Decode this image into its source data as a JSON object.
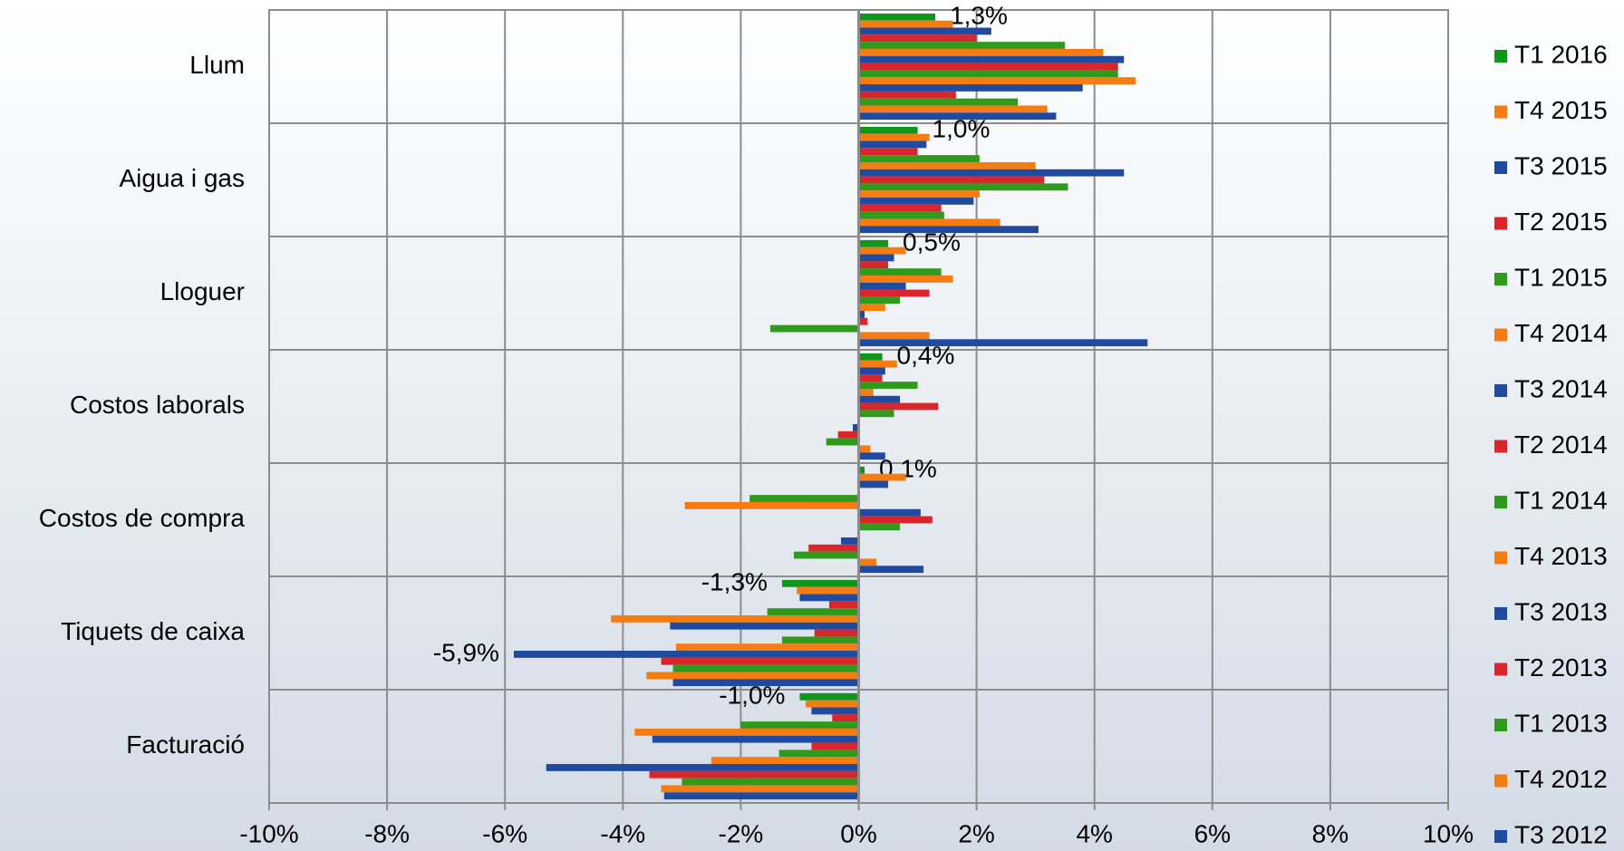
{
  "chart_data": {
    "type": "bar",
    "orientation": "horizontal",
    "categories": [
      "Llum",
      "Aigua i gas",
      "Lloguer",
      "Costos laborals",
      "Costos de compra",
      "Tiquets de caixa",
      "Facturació"
    ],
    "series": [
      {
        "name": "T1 2016",
        "color": "#109618",
        "values": [
          1.3,
          1.0,
          0.5,
          0.4,
          0.1,
          -1.3,
          -1.0
        ],
        "value_labels": [
          "1,3%",
          "1,0%",
          "0,5%",
          "0,4%",
          "0,1%",
          "-1,3%",
          "-1,0%"
        ]
      },
      {
        "name": "T4 2015",
        "color": "#f47c12",
        "values": [
          1.6,
          1.2,
          0.8,
          0.65,
          0.8,
          -1.05,
          -0.9
        ]
      },
      {
        "name": "T3 2015",
        "color": "#1f4aa0",
        "values": [
          2.25,
          1.15,
          0.6,
          0.45,
          0.5,
          -1.0,
          -0.8
        ]
      },
      {
        "name": "T2 2015",
        "color": "#d9262c",
        "values": [
          2.0,
          1.0,
          0.5,
          0.4,
          0,
          -0.5,
          -0.45
        ]
      },
      {
        "name": "T1 2015",
        "color": "#2f9a1c",
        "values": [
          3.5,
          2.05,
          1.4,
          1.0,
          -1.85,
          -1.55,
          -2.0
        ]
      },
      {
        "name": "T4 2014",
        "color": "#f47c12",
        "values": [
          4.15,
          3.0,
          1.6,
          0.25,
          -2.95,
          -4.2,
          -3.8
        ]
      },
      {
        "name": "T3 2014",
        "color": "#1f4aa0",
        "values": [
          4.5,
          4.5,
          0.8,
          0.7,
          1.05,
          -3.2,
          -3.5
        ]
      },
      {
        "name": "T2 2014",
        "color": "#d9262c",
        "values": [
          4.4,
          3.15,
          1.2,
          1.35,
          1.25,
          -0.75,
          -0.8
        ]
      },
      {
        "name": "T1 2014",
        "color": "#2f9a1c",
        "values": [
          4.4,
          3.55,
          0.7,
          0.6,
          0.7,
          -1.3,
          -1.35
        ]
      },
      {
        "name": "T4 2013",
        "color": "#f47c12",
        "values": [
          4.7,
          2.05,
          0.45,
          0,
          0,
          -3.1,
          -2.5
        ]
      },
      {
        "name": "T3 2013",
        "color": "#1f4aa0",
        "values": [
          3.8,
          1.95,
          0.1,
          -0.1,
          -0.3,
          -5.85,
          -5.3
        ],
        "value_labels": [
          null,
          null,
          null,
          null,
          null,
          "-5,9%",
          null
        ]
      },
      {
        "name": "T2 2013",
        "color": "#d9262c",
        "values": [
          1.65,
          1.4,
          0.15,
          -0.35,
          -0.85,
          -3.35,
          -3.55
        ]
      },
      {
        "name": "T1 2013",
        "color": "#2f9a1c",
        "values": [
          2.7,
          1.45,
          -1.5,
          -0.55,
          -1.1,
          -3.15,
          -3.0
        ]
      },
      {
        "name": "T4 2012",
        "color": "#f47c12",
        "values": [
          3.2,
          2.4,
          1.2,
          0.2,
          0.3,
          -3.6,
          -3.35
        ]
      },
      {
        "name": "T3 2012",
        "color": "#1f4aa0",
        "values": [
          3.35,
          3.05,
          4.9,
          0.45,
          1.1,
          -3.15,
          -3.3
        ]
      }
    ],
    "xlim": [
      -10,
      10
    ],
    "xticks": [
      {
        "value": -10,
        "label": "-10%"
      },
      {
        "value": -8,
        "label": "-8%"
      },
      {
        "value": -6,
        "label": "-6%"
      },
      {
        "value": -4,
        "label": "-4%"
      },
      {
        "value": -2,
        "label": "-2%"
      },
      {
        "value": 0,
        "label": "0%"
      },
      {
        "value": 2,
        "label": "2%"
      },
      {
        "value": 4,
        "label": "4%"
      },
      {
        "value": 6,
        "label": "6%"
      },
      {
        "value": 8,
        "label": "8%"
      },
      {
        "value": 10,
        "label": "10%"
      }
    ],
    "grid": true,
    "legend": "right"
  }
}
